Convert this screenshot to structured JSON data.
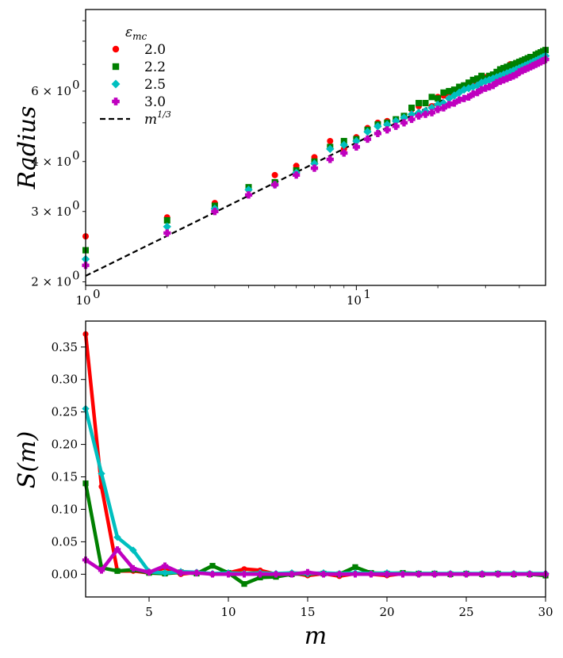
{
  "chart_data": [
    {
      "id": "radius",
      "type": "scatter",
      "xscale": "log",
      "yscale": "log",
      "xlim": [
        1,
        50
      ],
      "ylim": [
        1.96,
        9.6
      ],
      "ylabel": "Radius",
      "xlabel": "",
      "x_ticks": [
        {
          "value": 1,
          "label": "10",
          "exp": "0"
        },
        {
          "value": 10,
          "label": "10",
          "exp": "1"
        }
      ],
      "y_ticks": [
        {
          "value": 2,
          "label": "2 × 10",
          "exp": "0"
        },
        {
          "value": 3,
          "label": "3 × 10",
          "exp": "0"
        },
        {
          "value": 4,
          "label": "4 × 10",
          "exp": "0"
        },
        {
          "value": 6,
          "label": "6 × 10",
          "exp": "0"
        }
      ],
      "legend": {
        "title": "εmc",
        "position": "upper-left",
        "entries": [
          "2.0",
          "2.2",
          "2.5",
          "3.0",
          "m1/3"
        ]
      },
      "reference_line": {
        "label": "m1/3",
        "formula": "2.07 * m^(1/3)",
        "color": "#000000",
        "style": "dashed"
      },
      "series": [
        {
          "name": "2.0",
          "color": "#ff0000",
          "marker": "circle",
          "x": [
            1,
            2,
            3,
            4,
            5,
            6,
            7,
            8,
            9,
            10,
            11,
            12,
            13,
            14,
            15,
            16,
            17,
            18,
            19,
            20,
            21,
            22,
            23,
            24,
            25,
            26,
            27,
            28,
            29,
            30,
            31,
            32,
            33,
            34,
            35,
            36,
            37,
            38,
            39,
            40,
            41,
            42,
            43,
            44,
            45,
            46,
            47,
            48,
            49,
            50
          ],
          "y": [
            2.6,
            2.9,
            3.15,
            3.4,
            3.7,
            3.9,
            4.1,
            4.5,
            4.3,
            4.6,
            4.85,
            5.0,
            5.05,
            5.1,
            5.2,
            5.4,
            5.5,
            5.6,
            5.5,
            5.8,
            5.85,
            5.9,
            5.95,
            6.0,
            6.2,
            6.15,
            6.3,
            6.4,
            6.45,
            6.5,
            6.5,
            6.6,
            6.65,
            6.7,
            6.75,
            6.8,
            7.0,
            6.9,
            6.95,
            7.1,
            7.0,
            7.15,
            7.2,
            7.25,
            7.3,
            7.35,
            7.4,
            7.45,
            7.5,
            7.6
          ]
        },
        {
          "name": "2.2",
          "color": "#008000",
          "marker": "square",
          "x": [
            1,
            2,
            3,
            4,
            5,
            6,
            7,
            8,
            9,
            10,
            11,
            12,
            13,
            14,
            15,
            16,
            17,
            18,
            19,
            20,
            21,
            22,
            23,
            24,
            25,
            26,
            27,
            28,
            29,
            30,
            31,
            32,
            33,
            34,
            35,
            36,
            37,
            38,
            39,
            40,
            41,
            42,
            43,
            44,
            45,
            46,
            47,
            48,
            49,
            50
          ],
          "y": [
            2.4,
            2.85,
            3.1,
            3.45,
            3.55,
            3.8,
            4.0,
            4.35,
            4.5,
            4.55,
            4.8,
            4.95,
            5.0,
            5.1,
            5.2,
            5.45,
            5.6,
            5.6,
            5.8,
            5.75,
            5.95,
            6.0,
            6.05,
            6.15,
            6.2,
            6.3,
            6.4,
            6.45,
            6.55,
            6.45,
            6.55,
            6.6,
            6.7,
            6.8,
            6.85,
            6.9,
            6.95,
            7.0,
            7.05,
            7.1,
            7.15,
            7.2,
            7.25,
            7.3,
            7.3,
            7.4,
            7.45,
            7.5,
            7.55,
            7.6
          ]
        },
        {
          "name": "2.5",
          "color": "#00bfbf",
          "marker": "diamond",
          "x": [
            1,
            2,
            3,
            4,
            5,
            6,
            7,
            8,
            9,
            10,
            11,
            12,
            13,
            14,
            15,
            16,
            17,
            18,
            19,
            20,
            21,
            22,
            23,
            24,
            25,
            26,
            27,
            28,
            29,
            30,
            31,
            32,
            33,
            34,
            35,
            36,
            37,
            38,
            39,
            40,
            41,
            42,
            43,
            44,
            45,
            46,
            47,
            48,
            49,
            50
          ],
          "y": [
            2.28,
            2.75,
            3.05,
            3.4,
            3.5,
            3.75,
            3.95,
            4.3,
            4.4,
            4.5,
            4.75,
            4.9,
            4.95,
            5.05,
            5.15,
            5.25,
            5.3,
            5.35,
            5.45,
            5.55,
            5.6,
            5.75,
            5.85,
            5.95,
            6.05,
            6.1,
            6.15,
            6.2,
            6.3,
            6.35,
            6.4,
            6.45,
            6.5,
            6.55,
            6.6,
            6.65,
            6.7,
            6.75,
            6.8,
            6.85,
            6.9,
            6.95,
            7.0,
            7.05,
            7.1,
            7.15,
            7.2,
            7.25,
            7.3,
            7.35
          ]
        },
        {
          "name": "3.0",
          "color": "#bf00bf",
          "marker": "plus",
          "x": [
            1,
            2,
            3,
            4,
            5,
            6,
            7,
            8,
            9,
            10,
            11,
            12,
            13,
            14,
            15,
            16,
            17,
            18,
            19,
            20,
            21,
            22,
            23,
            24,
            25,
            26,
            27,
            28,
            29,
            30,
            31,
            32,
            33,
            34,
            35,
            36,
            37,
            38,
            39,
            40,
            41,
            42,
            43,
            44,
            45,
            46,
            47,
            48,
            49,
            50
          ],
          "y": [
            2.2,
            2.65,
            3.0,
            3.3,
            3.5,
            3.7,
            3.85,
            4.05,
            4.2,
            4.35,
            4.55,
            4.7,
            4.8,
            4.9,
            5.0,
            5.1,
            5.2,
            5.25,
            5.3,
            5.4,
            5.45,
            5.55,
            5.6,
            5.7,
            5.75,
            5.8,
            5.9,
            5.95,
            6.05,
            6.1,
            6.15,
            6.2,
            6.3,
            6.35,
            6.4,
            6.45,
            6.5,
            6.55,
            6.6,
            6.7,
            6.75,
            6.8,
            6.85,
            6.9,
            6.95,
            7.0,
            7.05,
            7.1,
            7.15,
            7.2
          ]
        }
      ]
    },
    {
      "id": "s_of_m",
      "type": "line",
      "xlim": [
        1,
        30
      ],
      "ylim": [
        -0.035,
        0.39
      ],
      "xlabel": "m",
      "ylabel": "S(m)",
      "x_ticks": [
        5,
        10,
        15,
        20,
        25,
        30
      ],
      "y_ticks": [
        0.0,
        0.05,
        0.1,
        0.15,
        0.2,
        0.25,
        0.3,
        0.35
      ],
      "y_tick_labels": [
        "0.00",
        "0.05",
        "0.10",
        "0.15",
        "0.20",
        "0.25",
        "0.30",
        "0.35"
      ],
      "series": [
        {
          "name": "2.0",
          "color": "#ff0000",
          "marker": "circle",
          "x": [
            1,
            2,
            3,
            4,
            5,
            6,
            7,
            8,
            9,
            10,
            11,
            12,
            13,
            14,
            15,
            16,
            17,
            18,
            19,
            20,
            21,
            22,
            23,
            24,
            25,
            26,
            27,
            28,
            29,
            30
          ],
          "y": [
            0.37,
            0.135,
            0.005,
            0.005,
            0.002,
            0.01,
            0.0,
            0.003,
            0.0,
            0.002,
            0.008,
            0.006,
            0.0,
            0.002,
            -0.002,
            0.001,
            -0.003,
            0.001,
            0.0,
            -0.002,
            0.001,
            0.0,
            0.001,
            0.0,
            0.001,
            0.0,
            0.001,
            0.0,
            0.0,
            -0.001
          ]
        },
        {
          "name": "2.2",
          "color": "#008000",
          "marker": "square",
          "x": [
            1,
            2,
            3,
            4,
            5,
            6,
            7,
            8,
            9,
            10,
            11,
            12,
            13,
            14,
            15,
            16,
            17,
            18,
            19,
            20,
            21,
            22,
            23,
            24,
            25,
            26,
            27,
            28,
            29,
            30
          ],
          "y": [
            0.14,
            0.01,
            0.005,
            0.007,
            0.002,
            0.001,
            0.003,
            0.001,
            0.013,
            0.002,
            -0.015,
            -0.005,
            -0.004,
            0.0,
            0.001,
            0.001,
            0.0,
            0.011,
            0.002,
            0.001,
            0.002,
            0.001,
            0.001,
            0.0,
            0.001,
            0.0,
            0.001,
            0.0,
            0.0,
            -0.002
          ]
        },
        {
          "name": "2.5",
          "color": "#00bfbf",
          "marker": "diamond",
          "x": [
            1,
            2,
            3,
            4,
            5,
            6,
            7,
            8,
            9,
            10,
            11,
            12,
            13,
            14,
            15,
            16,
            17,
            18,
            19,
            20,
            21,
            22,
            23,
            24,
            25,
            26,
            27,
            28,
            29,
            30
          ],
          "y": [
            0.255,
            0.155,
            0.057,
            0.037,
            0.004,
            0.002,
            0.004,
            0.003,
            0.001,
            0.002,
            0.001,
            0.002,
            0.001,
            0.002,
            0.001,
            0.002,
            0.001,
            0.002,
            0.001,
            0.002,
            0.001,
            0.001,
            0.001,
            0.001,
            0.001,
            0.001,
            0.001,
            0.001,
            0.001,
            0.001
          ]
        },
        {
          "name": "3.0",
          "color": "#bf00bf",
          "marker": "plus",
          "x": [
            1,
            2,
            3,
            4,
            5,
            6,
            7,
            8,
            9,
            10,
            11,
            12,
            13,
            14,
            15,
            16,
            17,
            18,
            19,
            20,
            21,
            22,
            23,
            24,
            25,
            26,
            27,
            28,
            29,
            30
          ],
          "y": [
            0.022,
            0.006,
            0.038,
            0.009,
            0.003,
            0.013,
            0.002,
            0.002,
            0.0,
            0.0,
            0.0,
            0.0,
            0.0,
            0.0,
            0.003,
            0.0,
            0.0,
            0.0,
            0.0,
            0.0,
            0.0,
            0.0,
            0.0,
            0.0,
            0.0,
            0.0,
            0.0,
            0.0,
            0.0,
            0.0
          ]
        }
      ]
    }
  ]
}
